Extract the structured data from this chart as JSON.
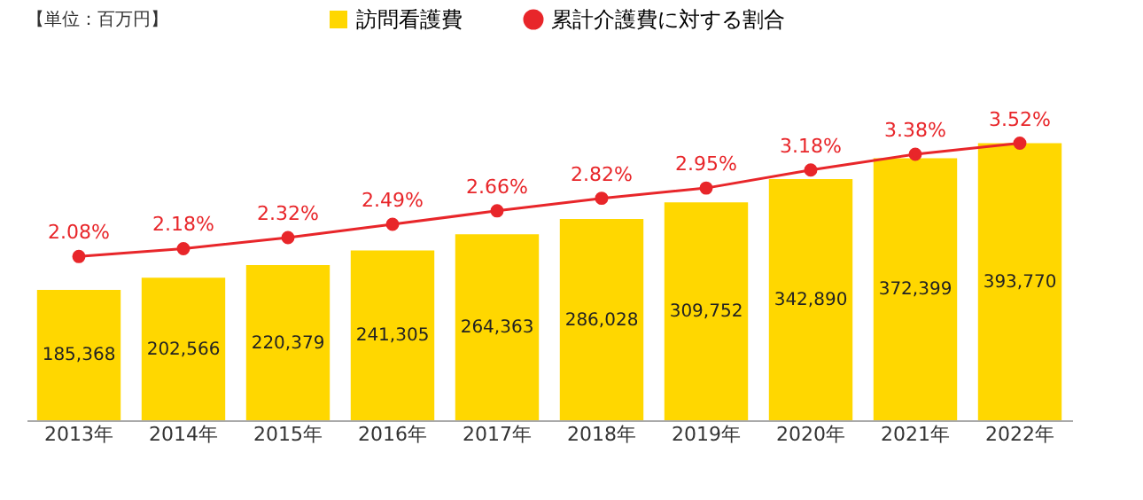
{
  "chart_data": {
    "type": "bar",
    "categories": [
      "2013年",
      "2014年",
      "2015年",
      "2016年",
      "2017年",
      "2018年",
      "2019年",
      "2020年",
      "2021年",
      "2022年"
    ],
    "series": [
      {
        "name": "訪問看護費",
        "color": "#ffd700",
        "values": [
          185368,
          202566,
          220379,
          241305,
          264363,
          286028,
          309752,
          342890,
          372399,
          393770
        ],
        "value_labels": [
          "185,368",
          "202,566",
          "220,379",
          "241,305",
          "264,363",
          "286,028",
          "309,752",
          "342,890",
          "372,399",
          "393,770"
        ]
      },
      {
        "name": "累計介護費に対する割合",
        "type": "line",
        "axis": "y2",
        "color": "#e8262a",
        "marker": "circle",
        "values": [
          2.08,
          2.18,
          2.32,
          2.49,
          2.66,
          2.82,
          2.95,
          3.18,
          3.38,
          3.52
        ],
        "value_labels": [
          "2.08%",
          "2.18%",
          "2.32%",
          "2.49%",
          "2.66%",
          "2.82%",
          "2.95%",
          "3.18%",
          "3.38%",
          "3.52%"
        ]
      }
    ],
    "data_labels": true,
    "legend": "top",
    "grid": false,
    "annotations": [
      "【単位：百万円】"
    ]
  }
}
